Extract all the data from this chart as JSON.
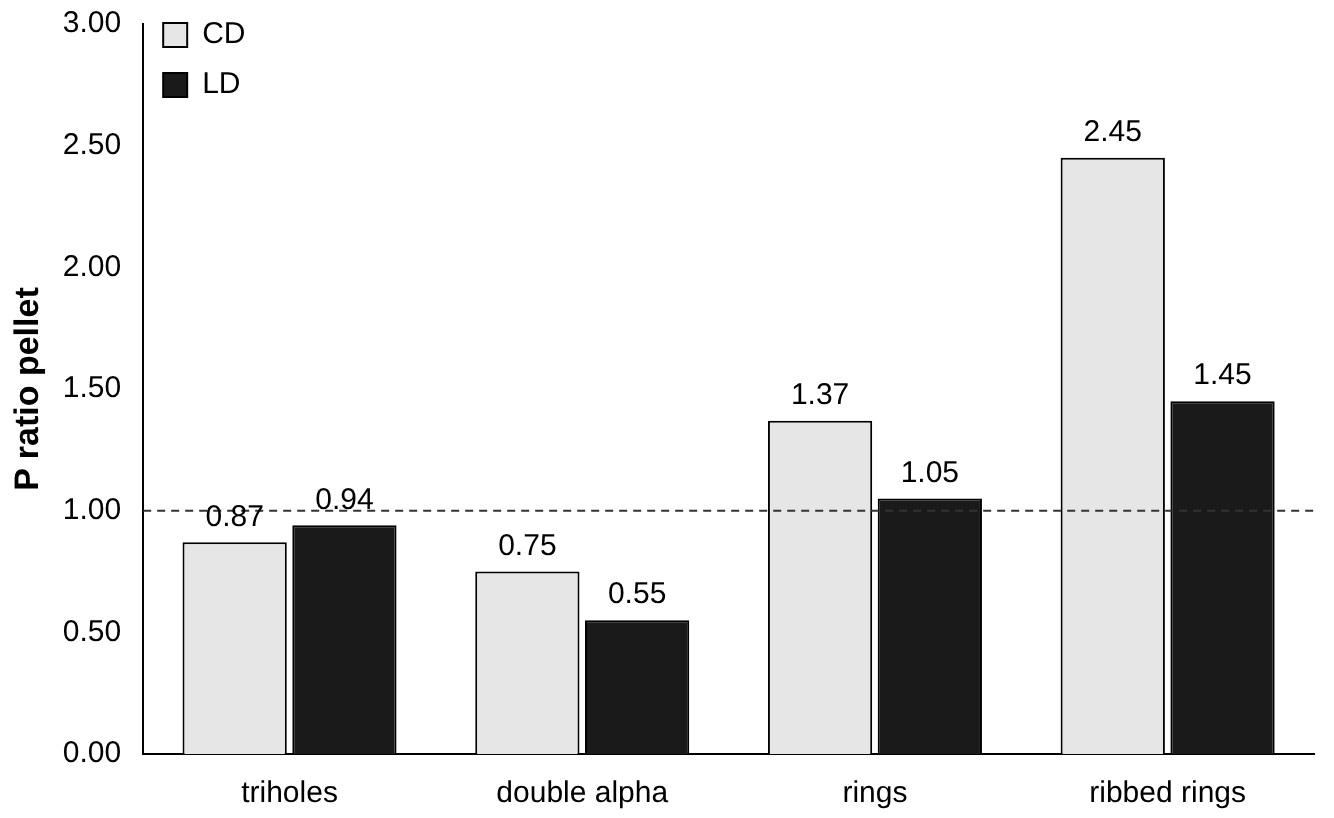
{
  "chart_data": {
    "type": "bar",
    "ylabel": "P ratio pellet",
    "categories": [
      "triholes",
      "double alpha",
      "rings",
      "ribbed rings"
    ],
    "series": [
      {
        "name": "CD",
        "color": "#e6e6e6",
        "values": [
          0.87,
          0.75,
          1.37,
          2.45
        ]
      },
      {
        "name": "LD",
        "color": "#1a1a1a",
        "values": [
          0.94,
          0.55,
          1.05,
          1.45
        ]
      }
    ],
    "ylim": [
      0,
      3
    ],
    "yticks": [
      {
        "value": 0,
        "label": "0.00"
      },
      {
        "value": 0.5,
        "label": "0.50"
      },
      {
        "value": 1,
        "label": "1.00"
      },
      {
        "value": 1.5,
        "label": "1.50"
      },
      {
        "value": 2,
        "label": "2.00"
      },
      {
        "value": 2.5,
        "label": "2.50"
      },
      {
        "value": 3,
        "label": "3.00"
      }
    ],
    "ref_lines": [
      {
        "axis": "y",
        "value": 1,
        "line_style": "dashed",
        "color": "#333333"
      }
    ],
    "data_labels": true,
    "legend": "top left",
    "grid": false
  }
}
